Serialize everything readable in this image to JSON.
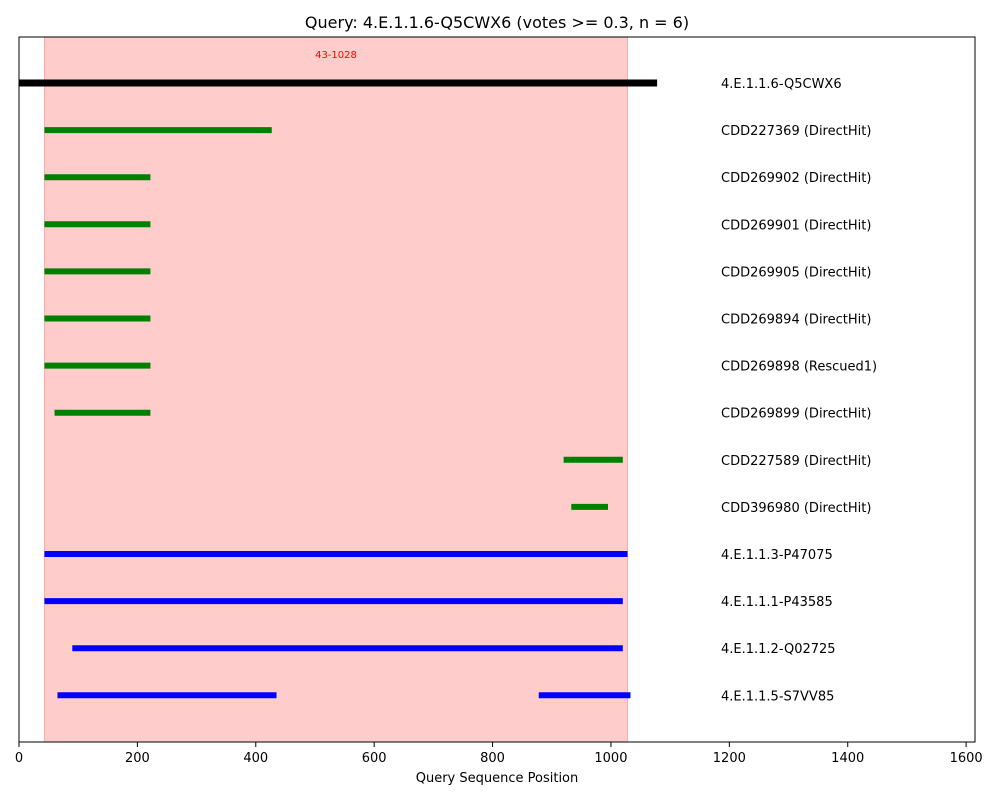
{
  "chart_data": {
    "type": "range",
    "title": "Query: 4.E.1.1.6-Q5CWX6 (votes >= 0.3, n = 6)",
    "xlabel": "Query Sequence Position",
    "ylabel": "",
    "xlim": [
      0,
      1615
    ],
    "xticks": [
      0,
      200,
      400,
      600,
      800,
      1000,
      1200,
      1400,
      1600
    ],
    "grid": false,
    "highlight_region": {
      "start": 43,
      "end": 1028,
      "label": "43-1028",
      "color": "#ff0000"
    },
    "colors": {
      "query": "#000000",
      "cdd": "#008000",
      "hit": "#0000ff",
      "region_label": "#ff0000"
    },
    "rows": [
      {
        "label": "4.E.1.1.6-Q5CWX6",
        "kind": "query",
        "segments": [
          [
            0,
            1078
          ]
        ]
      },
      {
        "label": "CDD227369 (DirectHit)",
        "kind": "cdd",
        "segments": [
          [
            43,
            427
          ]
        ]
      },
      {
        "label": "CDD269902 (DirectHit)",
        "kind": "cdd",
        "segments": [
          [
            43,
            222
          ]
        ]
      },
      {
        "label": "CDD269901 (DirectHit)",
        "kind": "cdd",
        "segments": [
          [
            43,
            222
          ]
        ]
      },
      {
        "label": "CDD269905 (DirectHit)",
        "kind": "cdd",
        "segments": [
          [
            43,
            222
          ]
        ]
      },
      {
        "label": "CDD269894 (DirectHit)",
        "kind": "cdd",
        "segments": [
          [
            43,
            222
          ]
        ]
      },
      {
        "label": "CDD269898 (Rescued1)",
        "kind": "cdd",
        "segments": [
          [
            43,
            222
          ]
        ]
      },
      {
        "label": "CDD269899 (DirectHit)",
        "kind": "cdd",
        "segments": [
          [
            60,
            222
          ]
        ]
      },
      {
        "label": "CDD227589 (DirectHit)",
        "kind": "cdd",
        "segments": [
          [
            920,
            1020
          ]
        ]
      },
      {
        "label": "CDD396980 (DirectHit)",
        "kind": "cdd",
        "segments": [
          [
            933,
            995
          ]
        ]
      },
      {
        "label": "4.E.1.1.3-P47075",
        "kind": "hit",
        "segments": [
          [
            43,
            1028
          ]
        ]
      },
      {
        "label": "4.E.1.1.1-P43585",
        "kind": "hit",
        "segments": [
          [
            43,
            1020
          ]
        ]
      },
      {
        "label": "4.E.1.1.2-Q02725",
        "kind": "hit",
        "segments": [
          [
            90,
            1020
          ]
        ]
      },
      {
        "label": "4.E.1.1.5-S7VV85",
        "kind": "hit",
        "segments": [
          [
            65,
            435
          ],
          [
            878,
            1033
          ]
        ]
      }
    ]
  }
}
